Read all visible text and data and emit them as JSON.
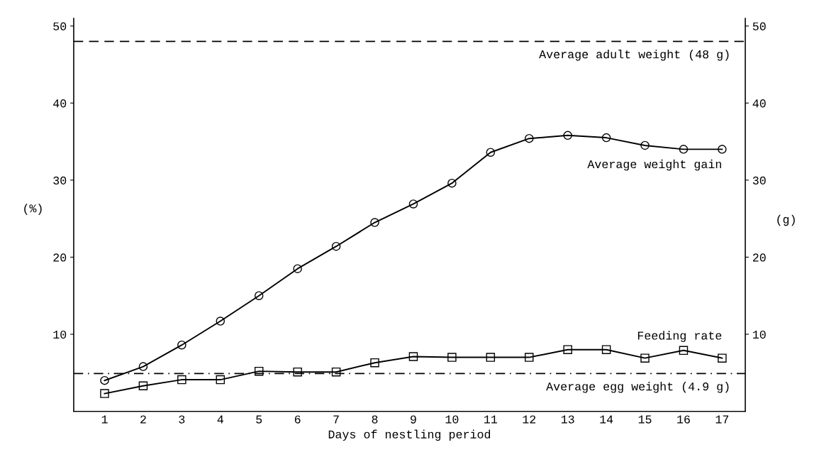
{
  "chart_data": {
    "type": "line",
    "xlabel": "Days of nestling period",
    "ylabel": "(%)",
    "y2label": "(g)",
    "x": [
      1,
      2,
      3,
      4,
      5,
      6,
      7,
      8,
      9,
      10,
      11,
      12,
      13,
      14,
      15,
      16,
      17
    ],
    "xlim": [
      0.2,
      17.6
    ],
    "xticks": [
      1,
      2,
      3,
      4,
      5,
      6,
      7,
      8,
      9,
      10,
      11,
      12,
      13,
      14,
      15,
      16,
      17
    ],
    "ylim": [
      0,
      51
    ],
    "yticks": [
      10,
      20,
      30,
      40,
      50
    ],
    "y2lim": [
      0,
      51
    ],
    "y2ticks": [
      10,
      20,
      30,
      40,
      50
    ],
    "series": [
      {
        "name": "Average weight gain",
        "color": "#000000",
        "axis": "y2",
        "marker": "circle",
        "values": [
          4.0,
          5.8,
          8.6,
          11.7,
          15.0,
          18.5,
          21.4,
          24.5,
          26.9,
          29.6,
          33.6,
          35.4,
          35.8,
          35.5,
          34.5,
          34.0,
          34.0
        ]
      },
      {
        "name": "Feeding rate",
        "color": "#000000",
        "axis": "y",
        "marker": "square",
        "values": [
          2.3,
          3.3,
          4.1,
          4.1,
          5.2,
          5.1,
          5.1,
          6.3,
          7.1,
          7.0,
          7.0,
          7.0,
          8.0,
          8.0,
          6.9,
          7.9,
          6.9
        ]
      }
    ],
    "ref_lines": [
      {
        "axis": "y2",
        "value": 48,
        "label": "Average adult weight (48 g)",
        "line_style": "dashed",
        "color": "#000000"
      },
      {
        "axis": "y2",
        "value": 4.9,
        "label": "Average egg weight (4.9 g)",
        "line_style": "dotted",
        "color": "#000000"
      }
    ],
    "grid": false,
    "legend": false,
    "line_style": "solid"
  }
}
